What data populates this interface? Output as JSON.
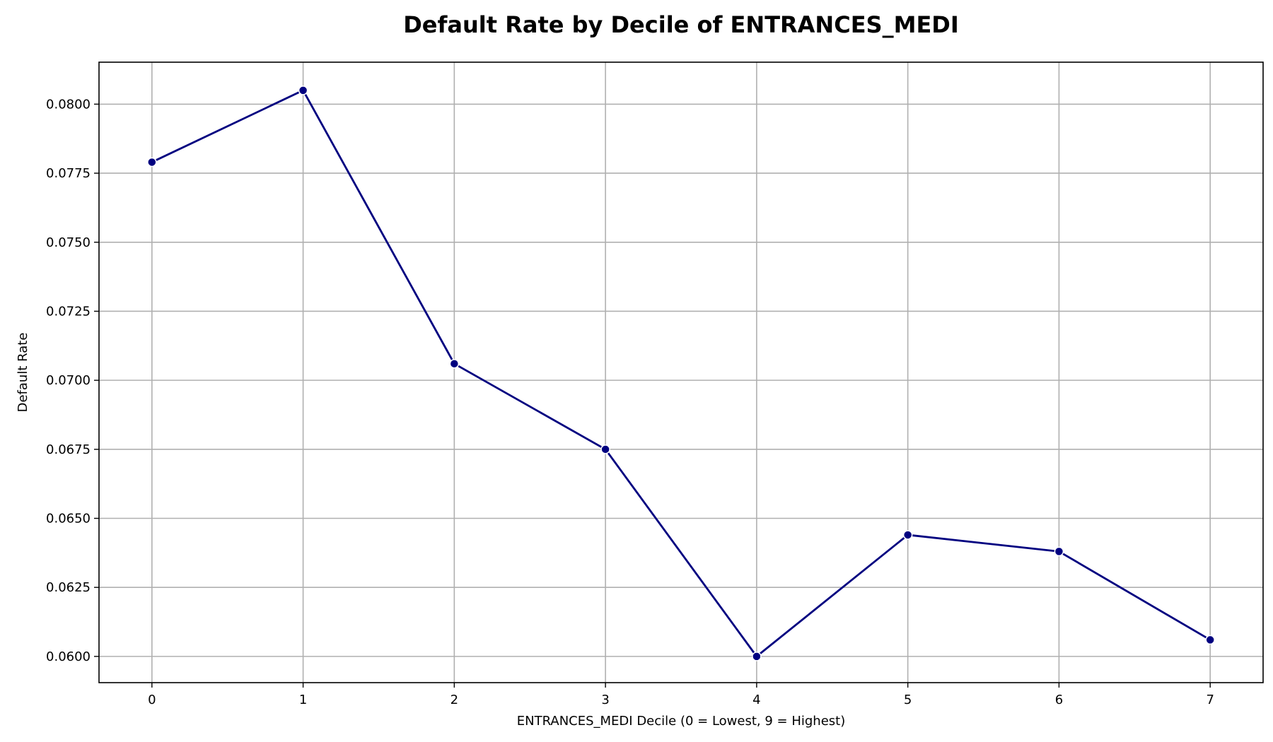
{
  "chart_data": {
    "type": "line",
    "title": "Default Rate by Decile of ENTRANCES_MEDI",
    "xlabel": "ENTRANCES_MEDI Decile (0 = Lowest, 9 = Highest)",
    "ylabel": "Default Rate",
    "x": [
      0,
      1,
      2,
      3,
      4,
      5,
      6,
      7
    ],
    "xticks": [
      "0",
      "1",
      "2",
      "3",
      "4",
      "5",
      "6",
      "7"
    ],
    "xlim": [
      -0.35,
      7.35
    ],
    "yticks": [
      "0.0600",
      "0.0625",
      "0.0650",
      "0.0675",
      "0.0700",
      "0.0725",
      "0.0750",
      "0.0775",
      "0.0800"
    ],
    "ytick_values": [
      0.06,
      0.0625,
      0.065,
      0.0675,
      0.07,
      0.0725,
      0.075,
      0.0775,
      0.08
    ],
    "ylim": [
      0.05905,
      0.08152
    ],
    "grid": true,
    "series": [
      {
        "values": [
          0.0779,
          0.0805,
          0.0706,
          0.0675,
          0.06,
          0.0644,
          0.0638,
          0.0606
        ],
        "color": "#000080"
      }
    ]
  }
}
